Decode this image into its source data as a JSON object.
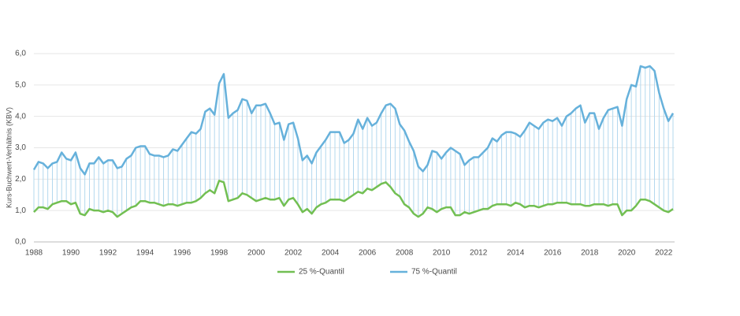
{
  "chart_data": {
    "type": "line",
    "y_label": "Kurs-Buchwert-Verhältnis (KBV)",
    "categories": [
      "1988",
      null,
      null,
      null,
      null,
      null,
      null,
      null,
      "1990",
      null,
      null,
      null,
      null,
      null,
      null,
      null,
      "1992",
      null,
      null,
      null,
      null,
      null,
      null,
      null,
      "1994",
      null,
      null,
      null,
      null,
      null,
      null,
      null,
      "1996",
      null,
      null,
      null,
      null,
      null,
      null,
      null,
      "1998",
      null,
      null,
      null,
      null,
      null,
      null,
      null,
      "2000",
      null,
      null,
      null,
      null,
      null,
      null,
      null,
      "2002",
      null,
      null,
      null,
      null,
      null,
      null,
      null,
      "2004",
      null,
      null,
      null,
      null,
      null,
      null,
      null,
      "2006",
      null,
      null,
      null,
      null,
      null,
      null,
      null,
      "2008",
      null,
      null,
      null,
      null,
      null,
      null,
      null,
      "2010",
      null,
      null,
      null,
      null,
      null,
      null,
      null,
      "2012",
      null,
      null,
      null,
      null,
      null,
      null,
      null,
      "2014",
      null,
      null,
      null,
      null,
      null,
      null,
      null,
      "2016",
      null,
      null,
      null,
      null,
      null,
      null,
      null,
      "2018",
      null,
      null,
      null,
      null,
      null,
      null,
      null,
      "2020",
      null,
      null,
      null,
      null,
      null,
      null,
      null,
      "2022",
      null,
      null
    ],
    "series": [
      {
        "name": "25 %-Quantil",
        "color": "#72bf52",
        "values": [
          0.95,
          1.1,
          1.1,
          1.05,
          1.2,
          1.25,
          1.3,
          1.3,
          1.2,
          1.25,
          0.9,
          0.85,
          1.05,
          1.0,
          1.0,
          0.95,
          1.0,
          0.95,
          0.8,
          0.9,
          1.0,
          1.1,
          1.15,
          1.3,
          1.3,
          1.25,
          1.25,
          1.2,
          1.15,
          1.2,
          1.2,
          1.15,
          1.2,
          1.25,
          1.25,
          1.3,
          1.4,
          1.55,
          1.65,
          1.55,
          1.95,
          1.9,
          1.3,
          1.35,
          1.4,
          1.55,
          1.5,
          1.4,
          1.3,
          1.35,
          1.4,
          1.35,
          1.35,
          1.4,
          1.15,
          1.35,
          1.4,
          1.2,
          0.95,
          1.05,
          0.9,
          1.1,
          1.2,
          1.25,
          1.35,
          1.35,
          1.35,
          1.3,
          1.4,
          1.5,
          1.6,
          1.55,
          1.7,
          1.65,
          1.75,
          1.85,
          1.9,
          1.75,
          1.55,
          1.45,
          1.2,
          1.1,
          0.9,
          0.8,
          0.9,
          1.1,
          1.05,
          0.95,
          1.05,
          1.1,
          1.1,
          0.85,
          0.85,
          0.95,
          0.9,
          0.95,
          1.0,
          1.05,
          1.05,
          1.15,
          1.2,
          1.2,
          1.2,
          1.15,
          1.25,
          1.2,
          1.1,
          1.15,
          1.15,
          1.1,
          1.15,
          1.2,
          1.2,
          1.25,
          1.25,
          1.25,
          1.2,
          1.2,
          1.2,
          1.15,
          1.15,
          1.2,
          1.2,
          1.2,
          1.15,
          1.2,
          1.2,
          0.85,
          1.0,
          1.0,
          1.15,
          1.35,
          1.35,
          1.3,
          1.2,
          1.1,
          1.0,
          0.95,
          1.05
        ]
      },
      {
        "name": "75 %-Quantil",
        "color": "#66b1db",
        "values": [
          2.3,
          2.55,
          2.5,
          2.35,
          2.5,
          2.55,
          2.85,
          2.65,
          2.6,
          2.85,
          2.35,
          2.15,
          2.5,
          2.5,
          2.7,
          2.5,
          2.6,
          2.6,
          2.35,
          2.4,
          2.65,
          2.75,
          3.0,
          3.05,
          3.05,
          2.8,
          2.75,
          2.75,
          2.7,
          2.75,
          2.95,
          2.9,
          3.1,
          3.3,
          3.5,
          3.45,
          3.6,
          4.15,
          4.25,
          4.05,
          5.05,
          5.35,
          3.95,
          4.1,
          4.2,
          4.55,
          4.5,
          4.1,
          4.35,
          4.35,
          4.4,
          4.1,
          3.75,
          3.8,
          3.25,
          3.75,
          3.8,
          3.3,
          2.6,
          2.75,
          2.5,
          2.85,
          3.05,
          3.25,
          3.5,
          3.5,
          3.5,
          3.15,
          3.25,
          3.45,
          3.9,
          3.6,
          3.95,
          3.7,
          3.8,
          4.1,
          4.35,
          4.4,
          4.25,
          3.75,
          3.55,
          3.2,
          2.9,
          2.4,
          2.25,
          2.45,
          2.9,
          2.85,
          2.65,
          2.85,
          3.0,
          2.9,
          2.8,
          2.45,
          2.6,
          2.7,
          2.7,
          2.85,
          3.0,
          3.3,
          3.2,
          3.4,
          3.5,
          3.5,
          3.45,
          3.35,
          3.55,
          3.8,
          3.7,
          3.6,
          3.8,
          3.9,
          3.85,
          3.95,
          3.7,
          4.0,
          4.1,
          4.25,
          4.35,
          3.8,
          4.1,
          4.1,
          3.6,
          3.95,
          4.2,
          4.25,
          4.3,
          3.7,
          4.55,
          5.0,
          4.95,
          5.6,
          5.55,
          5.6,
          5.45,
          4.75,
          4.25,
          3.85,
          4.1
        ]
      }
    ],
    "drop_color": "#b3d8ee",
    "ylim": [
      0,
      6
    ],
    "yticks": [
      {
        "value": 0,
        "label": "0,0"
      },
      {
        "value": 1,
        "label": "1,0"
      },
      {
        "value": 2,
        "label": "2,0"
      },
      {
        "value": 3,
        "label": "3,0"
      },
      {
        "value": 4,
        "label": "4,0"
      },
      {
        "value": 5,
        "label": "5,0"
      },
      {
        "value": 6,
        "label": "6,0"
      }
    ],
    "grid": true,
    "legend": "bottom"
  }
}
